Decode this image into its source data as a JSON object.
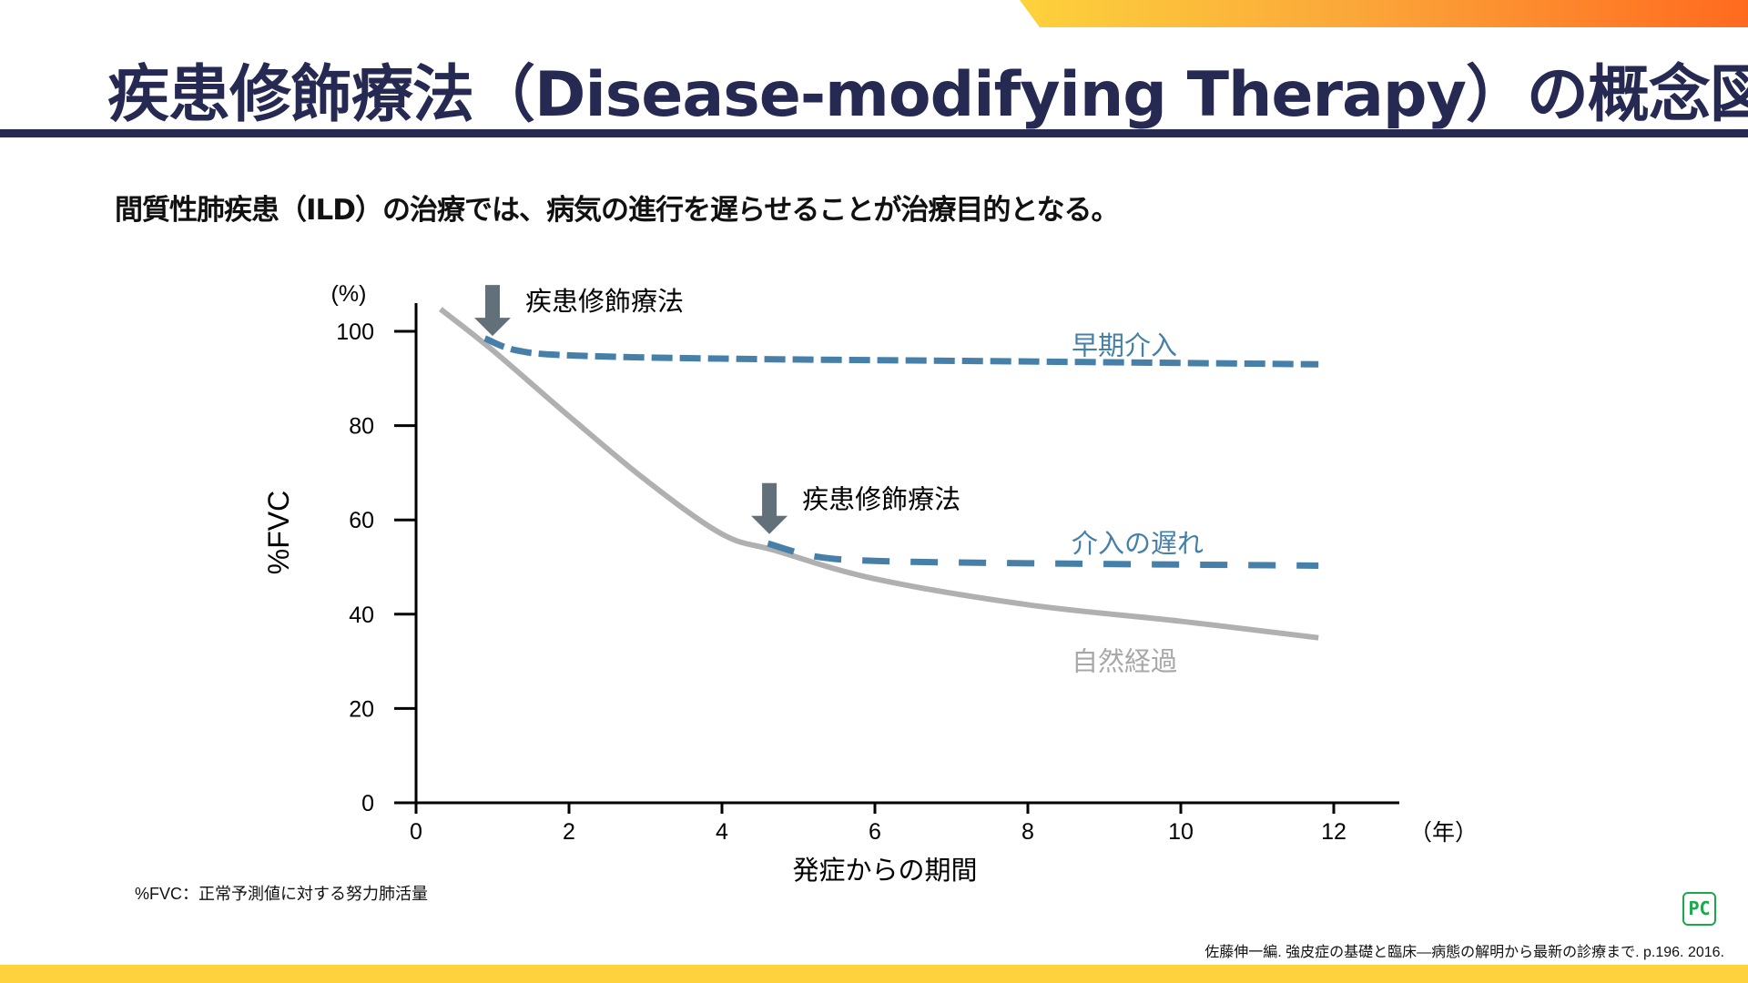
{
  "header": {
    "title": "疾患修飾療法（Disease-modifying Therapy）の概念図",
    "subtitle": "間質性肺疾患（ILD）の治療では、病気の進行を遅らせることが治療目的となる。"
  },
  "colors": {
    "navy": "#262a52",
    "intervention": "#4680a8",
    "natural": "#b0b0b0",
    "arrow": "#627079",
    "accent_yellow": "#fdd23c"
  },
  "chart_data": {
    "type": "line",
    "ylabel": "%FVC",
    "yunit": "(%)",
    "xlabel": "発症からの期間",
    "xunit": "（年）",
    "xlim": [
      0,
      13
    ],
    "ylim": [
      0,
      105
    ],
    "xticks": [
      "0",
      "2",
      "4",
      "6",
      "8",
      "10",
      "12"
    ],
    "xtick_values": [
      0,
      2,
      4,
      6,
      8,
      10,
      12
    ],
    "yticks": [
      "0",
      "20",
      "40",
      "60",
      "80",
      "100"
    ],
    "ytick_values": [
      0,
      20,
      40,
      60,
      80,
      100
    ],
    "series": [
      {
        "name": "自然経過",
        "style": "solid",
        "color": "#b0b0b0",
        "x": [
          0.32,
          1,
          2,
          3,
          4,
          4.7,
          6,
          8,
          10,
          11.8
        ],
        "y": [
          104.7,
          96,
          82,
          68.5,
          57,
          53.5,
          47.5,
          42,
          38.5,
          35
        ]
      },
      {
        "name": "早期介入",
        "style": "dashed",
        "color": "#4680a8",
        "x": [
          0.9,
          1.3,
          2,
          4,
          8,
          11.8
        ],
        "y": [
          98.5,
          96,
          94.9,
          94.2,
          93.6,
          93
        ]
      },
      {
        "name": "介入の遅れ",
        "style": "dashed",
        "color": "#4680a8",
        "x": [
          4.6,
          5.2,
          6,
          8,
          11.8
        ],
        "y": [
          55,
          52.3,
          51.3,
          50.8,
          50.3
        ]
      }
    ],
    "annotations": [
      {
        "text": "疾患修飾療法",
        "arrow_x": 1.0,
        "arrow_y": 99
      },
      {
        "text": "疾患修飾療法",
        "arrow_x": 4.62,
        "arrow_y": 57
      }
    ],
    "series_labels": [
      {
        "text": "早期介入",
        "x": 8.5,
        "y": 98
      },
      {
        "text": "介入の遅れ",
        "x": 8.5,
        "y": 56
      },
      {
        "text": "自然経過",
        "x": 8.5,
        "y": 31
      }
    ]
  },
  "footer": {
    "footnote": "%FVC：正常予測値に対する努力肺活量",
    "citation": "佐藤伸一編. 強皮症の基礎と臨床―病態の解明から最新の診療まで. p.196. 2016.",
    "logo": "PC"
  }
}
